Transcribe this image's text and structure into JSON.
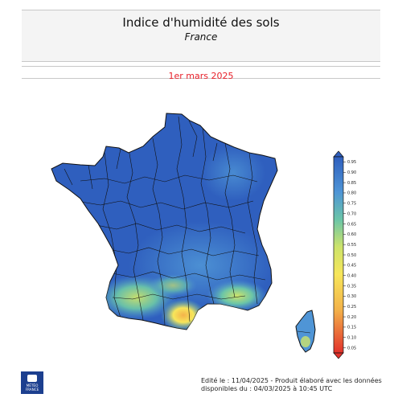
{
  "header": {
    "title": "Indice d'humidité des sols",
    "subtitle": "France"
  },
  "date_label": "1er mars 2025",
  "legend": {
    "ticks": [
      "0.95",
      "0.90",
      "0.85",
      "0.80",
      "0.75",
      "0.70",
      "0.65",
      "0.60",
      "0.55",
      "0.50",
      "0.45",
      "0.40",
      "0.35",
      "0.30",
      "0.25",
      "0.20",
      "0.15",
      "0.10",
      "0.05"
    ],
    "colors": {
      "high": "#2f5fbe",
      "mid_high": "#4f95d6",
      "mid": "#6bc5a8",
      "mid_low": "#cde36a",
      "low": "#f7e65a",
      "lower": "#f3b24a",
      "lowest": "#e2312b"
    }
  },
  "footer": {
    "line1": "Edité le : 11/04/2025 - Produit élaboré avec les données",
    "line2": "disponibles du : 04/03/2025 à 10:45 UTC"
  },
  "logo": {
    "name": "meteo-france-logo",
    "line1": "MÉTÉO",
    "line2": "FRANCE"
  },
  "map": {
    "country": "France",
    "regions_shown": [
      "mainland",
      "corsica"
    ]
  }
}
